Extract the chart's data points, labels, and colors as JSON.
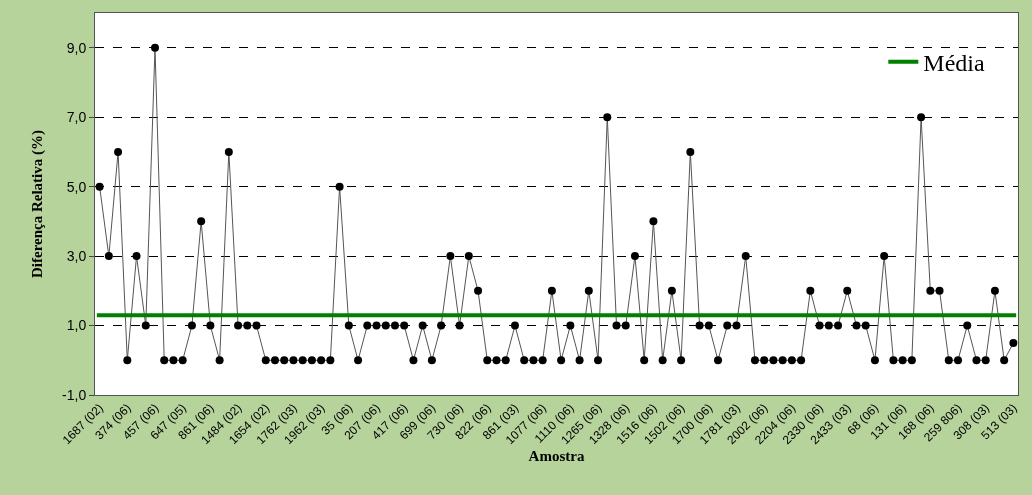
{
  "chart_data": {
    "type": "line",
    "xlabel": "Amostra",
    "ylabel": "Diferença Relativa (%)",
    "categories": [
      "1687 (02)",
      null,
      null,
      "374 (06)",
      null,
      null,
      "457 (06)",
      null,
      null,
      "647 (05)",
      null,
      null,
      "861 (06)",
      null,
      null,
      "1484 (02)",
      null,
      null,
      "1654 (02)",
      null,
      null,
      "1762 (03)",
      null,
      null,
      "1962 (03)",
      null,
      null,
      "35 (06)",
      null,
      null,
      "207 (06)",
      null,
      null,
      "417 (06)",
      null,
      null,
      "699 (06)",
      null,
      null,
      "730 (06)",
      null,
      null,
      "822 (06)",
      null,
      null,
      "861 (03)",
      null,
      null,
      "1077 (06)",
      null,
      null,
      "1110 (06)",
      null,
      null,
      "1265 (06)",
      null,
      null,
      "1328 (06)",
      null,
      null,
      "1516 (06)",
      null,
      null,
      "1502 (06)",
      null,
      null,
      "1700 (06)",
      null,
      null,
      "1781 (03)",
      null,
      null,
      "2002 (06)",
      null,
      null,
      "2204 (06)",
      null,
      null,
      "2330 (06)",
      null,
      null,
      "2433 (03)",
      null,
      null,
      "68 (06)",
      null,
      null,
      "131 (06)",
      null,
      null,
      "168 (06)",
      null,
      null,
      "259 806)",
      null,
      null,
      "308 (03)",
      null,
      null,
      "513 (03)"
    ],
    "series": [
      {
        "color": "#000000",
        "values": [
          5,
          3,
          6,
          0,
          3,
          1,
          9,
          0,
          0,
          0,
          1,
          4,
          1,
          0,
          6,
          1,
          1,
          1,
          0,
          0,
          0,
          0,
          0,
          0,
          0,
          0,
          5,
          1,
          0,
          1,
          1,
          1,
          1,
          1,
          0,
          1,
          0,
          1,
          3,
          1,
          3,
          2,
          0,
          0,
          0,
          1,
          0,
          0,
          0,
          2,
          0,
          1,
          0,
          2,
          0,
          7,
          1,
          1,
          3,
          0,
          4,
          0,
          2,
          0,
          6,
          1,
          1,
          0,
          1,
          1,
          3,
          0,
          0,
          0,
          0,
          0,
          0,
          2,
          1,
          1,
          1,
          2,
          1,
          1,
          0,
          3,
          0,
          0,
          0,
          7,
          2,
          2,
          0,
          0,
          1,
          0,
          0,
          2,
          0,
          0.5
        ]
      }
    ],
    "ylim": [
      -1,
      10
    ],
    "yticks": [
      {
        "value": -1,
        "label": "-1,0"
      },
      {
        "value": 1,
        "label": "1,0"
      },
      {
        "value": 3,
        "label": "3,0"
      },
      {
        "value": 5,
        "label": "5,0"
      },
      {
        "value": 7,
        "label": "7,0"
      },
      {
        "value": 9,
        "label": "9,0"
      }
    ],
    "ref_lines": [
      {
        "axis": "y",
        "value": 1.3,
        "label": "Média",
        "color": "#008000",
        "line_style": "solid"
      }
    ],
    "grid": "y",
    "legend": "top right",
    "marker": "circle",
    "line_style": "solid"
  }
}
